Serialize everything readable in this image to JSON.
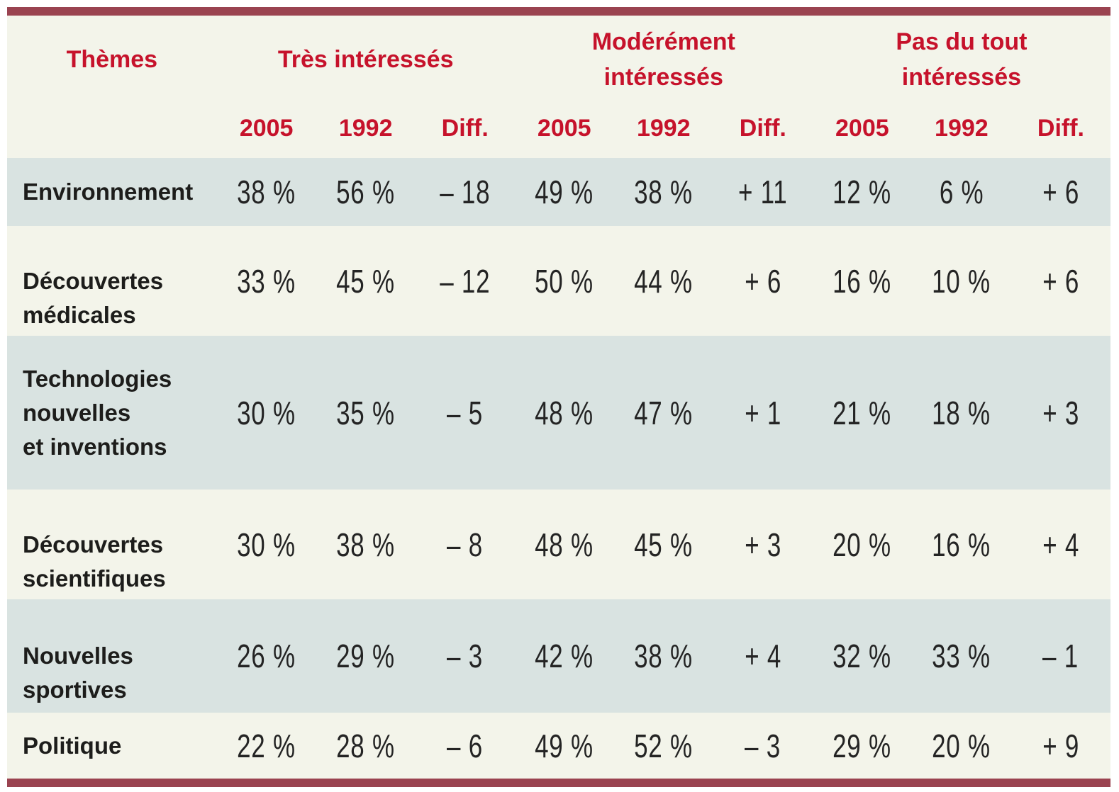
{
  "colors": {
    "bar": "#9a4350",
    "header_text": "#c6122b",
    "row_shaded": "#d9e3e1",
    "background": "#f3f4ea",
    "label_text": "#1d1d1b",
    "value_text": "#242424"
  },
  "table": {
    "corner_label": "Thèmes",
    "groups": [
      {
        "lines": [
          "Très intéressés"
        ]
      },
      {
        "lines": [
          "Modérément",
          "intéressés"
        ]
      },
      {
        "lines": [
          "Pas du tout",
          "intéressés"
        ]
      }
    ],
    "subheaders": [
      "2005",
      "1992",
      "Diff."
    ],
    "rows": [
      {
        "label_lines": [
          "Environnement"
        ],
        "values": [
          "38 %",
          "56 %",
          "– 18",
          "49 %",
          "38 %",
          "+ 11",
          "12 %",
          "6 %",
          "+ 6"
        ]
      },
      {
        "label_lines": [
          "Découvertes",
          "médicales"
        ],
        "values": [
          "33 %",
          "45 %",
          "– 12",
          "50 %",
          "44 %",
          "+ 6",
          "16 %",
          "10 %",
          "+ 6"
        ]
      },
      {
        "label_lines": [
          "Technologies",
          "nouvelles",
          "et inventions"
        ],
        "values": [
          "30 %",
          "35 %",
          "– 5",
          "48 %",
          "47 %",
          "+ 1",
          "21 %",
          "18 %",
          "+ 3"
        ]
      },
      {
        "label_lines": [
          "Découvertes",
          "scientifiques"
        ],
        "values": [
          "30 %",
          "38 %",
          "– 8",
          "48 %",
          "45 %",
          "+ 3",
          "20 %",
          "16 %",
          "+ 4"
        ]
      },
      {
        "label_lines": [
          "Nouvelles",
          "sportives"
        ],
        "values": [
          "26 %",
          "29 %",
          "– 3",
          "42 %",
          "38 %",
          "+ 4",
          "32 %",
          "33 %",
          "– 1"
        ]
      },
      {
        "label_lines": [
          "Politique"
        ],
        "values": [
          "22 %",
          "28 %",
          "– 6",
          "49 %",
          "52 %",
          "– 3",
          "29 %",
          "20 %",
          "+ 9"
        ]
      }
    ]
  },
  "chart_data": {
    "type": "table",
    "title": "Thèmes",
    "column_groups": [
      "Très intéressés",
      "Modérément intéressés",
      "Pas du tout intéressés"
    ],
    "columns_per_group": [
      "2005",
      "1992",
      "Diff."
    ],
    "rows": [
      {
        "theme": "Environnement",
        "tres": [
          38,
          56,
          -18
        ],
        "moderement": [
          49,
          38,
          11
        ],
        "pas_du_tout": [
          12,
          6,
          6
        ]
      },
      {
        "theme": "Découvertes médicales",
        "tres": [
          33,
          45,
          -12
        ],
        "moderement": [
          50,
          44,
          6
        ],
        "pas_du_tout": [
          16,
          10,
          6
        ]
      },
      {
        "theme": "Technologies nouvelles et inventions",
        "tres": [
          30,
          35,
          -5
        ],
        "moderement": [
          48,
          47,
          1
        ],
        "pas_du_tout": [
          21,
          18,
          3
        ]
      },
      {
        "theme": "Découvertes scientifiques",
        "tres": [
          30,
          38,
          -8
        ],
        "moderement": [
          48,
          45,
          3
        ],
        "pas_du_tout": [
          20,
          16,
          4
        ]
      },
      {
        "theme": "Nouvelles sportives",
        "tres": [
          26,
          29,
          -3
        ],
        "moderement": [
          42,
          38,
          4
        ],
        "pas_du_tout": [
          32,
          33,
          -1
        ]
      },
      {
        "theme": "Politique",
        "tres": [
          22,
          28,
          -6
        ],
        "moderement": [
          49,
          52,
          -3
        ],
        "pas_du_tout": [
          29,
          20,
          9
        ]
      }
    ]
  }
}
